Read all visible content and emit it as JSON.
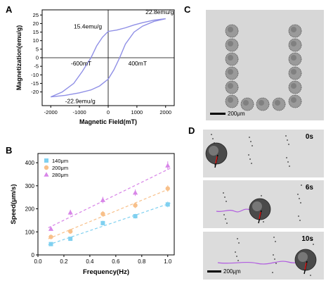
{
  "panels": {
    "a": "A",
    "b": "B",
    "c": "C",
    "d": "D"
  },
  "chart_data": [
    {
      "panel": "A",
      "type": "line",
      "xlabel": "Magnetic Field(mT)",
      "ylabel": "Magnetization(emu/g)",
      "xlim": [
        -2300,
        2300
      ],
      "ylim": [
        -28,
        28
      ],
      "xticks": [
        -2000,
        -1000,
        0,
        1000,
        2000
      ],
      "yticks": [
        -20,
        -15,
        -10,
        -5,
        0,
        5,
        10,
        15,
        20,
        25
      ],
      "grid": false,
      "color": "#8f8fe6",
      "series": [
        {
          "x": [
            -2000,
            -1500,
            -1000,
            -600,
            -300,
            0,
            200,
            400,
            600,
            900,
            1200,
            1600,
            2000
          ],
          "y": [
            -22.9,
            -22.0,
            -20.5,
            -18.8,
            -16.5,
            -12.5,
            -7.0,
            0.0,
            8.0,
            15.0,
            18.5,
            21.3,
            22.8
          ]
        },
        {
          "x": [
            2000,
            1600,
            1200,
            900,
            600,
            300,
            0,
            -200,
            -400,
            -600,
            -900,
            -1200,
            -1600,
            -2000
          ],
          "y": [
            22.8,
            22.0,
            20.5,
            19.2,
            17.5,
            16.2,
            15.4,
            12.0,
            7.0,
            0.0,
            -8.0,
            -15.0,
            -20.0,
            -22.9
          ]
        }
      ],
      "annotations": [
        "22.8emu/g",
        "15.4emu/g",
        "-600mT",
        "400mT",
        "-22.9emu/g"
      ]
    },
    {
      "panel": "B",
      "type": "scatter",
      "xlabel": "Frequency(Hz)",
      "ylabel": "Speed(μm/s)",
      "xlim": [
        0.0,
        1.05
      ],
      "ylim": [
        0,
        440
      ],
      "xticks": [
        0.0,
        0.2,
        0.4,
        0.6,
        0.8,
        1.0
      ],
      "yticks": [
        0,
        100,
        200,
        300,
        400
      ],
      "legend": "top-left",
      "grid": false,
      "x": [
        0.1,
        0.25,
        0.5,
        0.75,
        1.0
      ],
      "series": [
        {
          "name": "140μm",
          "color": "#7fd0f0",
          "marker": "square",
          "values": [
            47,
            70,
            138,
            168,
            219
          ],
          "errors": [
            8,
            8,
            10,
            10,
            12
          ]
        },
        {
          "name": "200μm",
          "color": "#f8c08a",
          "marker": "circle",
          "values": [
            78,
            102,
            178,
            215,
            288
          ],
          "errors": [
            8,
            10,
            12,
            12,
            14
          ]
        },
        {
          "name": "280μm",
          "color": "#d886e8",
          "marker": "triangle",
          "values": [
            113,
            184,
            238,
            270,
            388
          ],
          "errors": [
            8,
            12,
            14,
            14,
            18
          ]
        }
      ]
    }
  ],
  "images": {
    "c_scale": "200μm",
    "d_frames": [
      "0s",
      "6s",
      "10s"
    ],
    "d_scale": "200μm"
  }
}
